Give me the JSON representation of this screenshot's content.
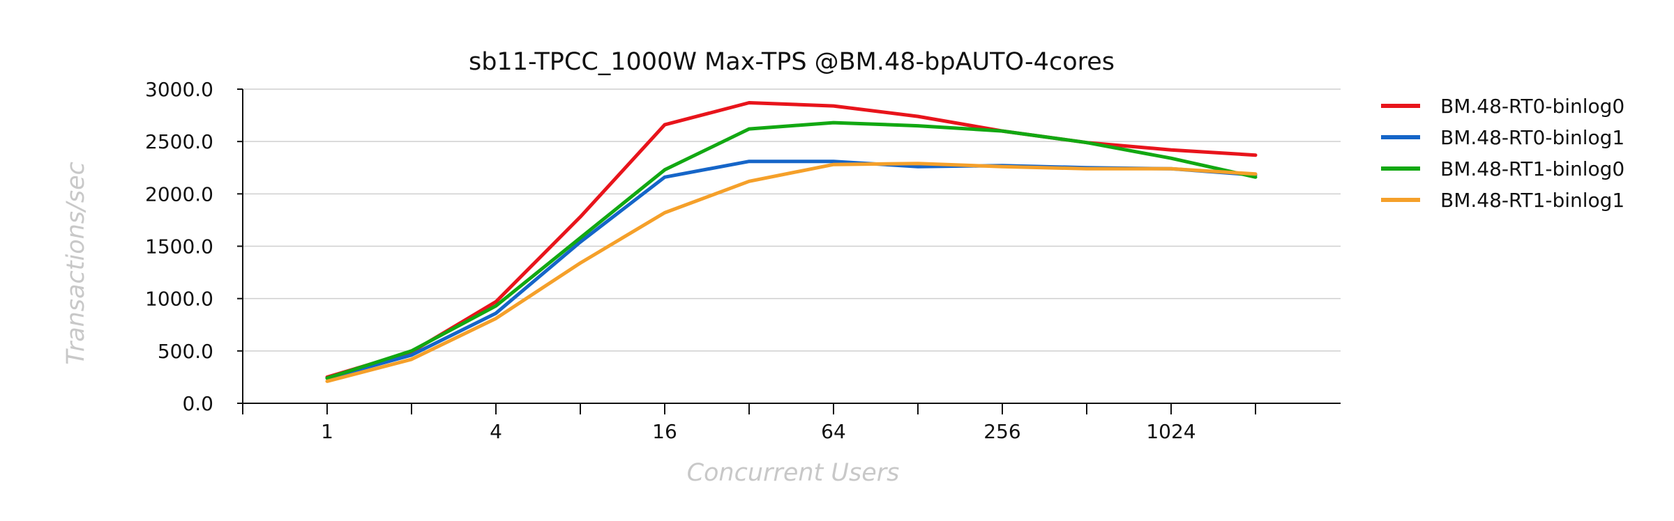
{
  "chart_data": {
    "type": "line",
    "title": "sb11-TPCC_1000W Max-TPS @BM.48-bpAUTO-4cores",
    "xlabel": "Concurrent Users",
    "ylabel": "Transactions/sec",
    "x": [
      1,
      2,
      4,
      8,
      16,
      32,
      64,
      128,
      256,
      512,
      1024,
      2048
    ],
    "x_tick_labels": [
      "1",
      "4",
      "16",
      "64",
      "256",
      "1024"
    ],
    "x_scale": "log2",
    "ylim": [
      0,
      3000
    ],
    "y_tick_labels": [
      "0.0",
      "500.0",
      "1000.0",
      "1500.0",
      "2000.0",
      "2500.0",
      "3000.0"
    ],
    "grid": true,
    "legend_position": "right",
    "series": [
      {
        "name": "BM.48-RT0-binlog0",
        "color": "#e8141b",
        "values": [
          250,
          490,
          970,
          1780,
          2660,
          2870,
          2840,
          2740,
          2600,
          2490,
          2420,
          2370
        ]
      },
      {
        "name": "BM.48-RT0-binlog1",
        "color": "#1565c8",
        "values": [
          240,
          460,
          860,
          1540,
          2160,
          2310,
          2310,
          2260,
          2270,
          2250,
          2240,
          2180
        ]
      },
      {
        "name": "BM.48-RT1-binlog0",
        "color": "#12a812",
        "values": [
          240,
          500,
          930,
          1580,
          2230,
          2620,
          2680,
          2650,
          2600,
          2490,
          2340,
          2160
        ]
      },
      {
        "name": "BM.48-RT1-binlog1",
        "color": "#f5a02a",
        "values": [
          210,
          420,
          810,
          1340,
          1820,
          2120,
          2280,
          2290,
          2260,
          2240,
          2240,
          2190
        ]
      }
    ]
  }
}
